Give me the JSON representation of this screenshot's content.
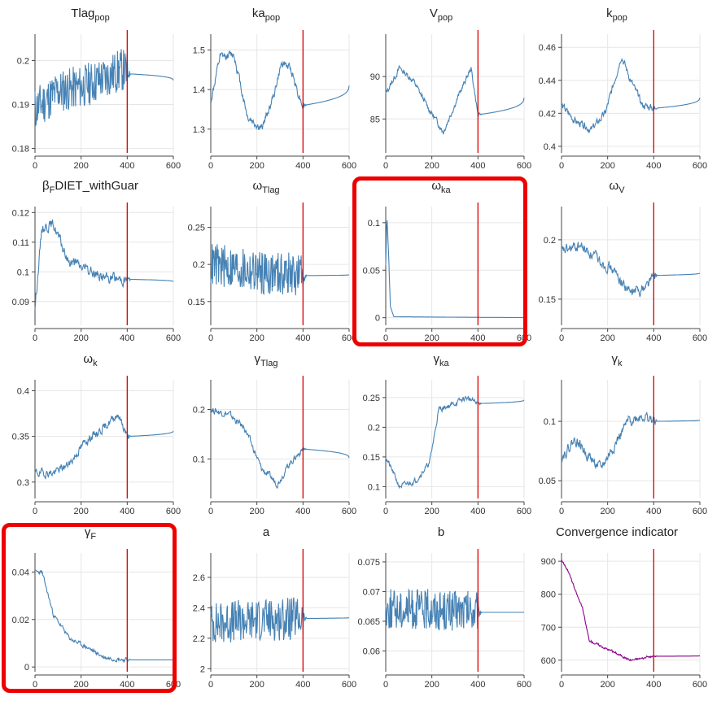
{
  "colors": {
    "series": "#4682b4",
    "convergence": "#8b008b",
    "burnin": "#dd0000",
    "grid": "#e6e6e6",
    "highlight": "#ee0000"
  },
  "highlighted": [
    "omega_ka",
    "gamma_F"
  ],
  "chart_data": [
    {
      "id": "Tlag_pop",
      "type": "line",
      "title_main": "Tlag",
      "title_sub": "pop",
      "xlim": [
        0,
        600
      ],
      "ylim": [
        0.179,
        0.206
      ],
      "yticks": [
        0.18,
        0.19,
        0.2
      ],
      "ytick_labels": [
        "0.18",
        "0.19",
        "0.2"
      ],
      "xticks": [
        0,
        200,
        400,
        600
      ],
      "xtick_labels": [
        "0",
        "200",
        "400",
        "600"
      ],
      "burnin": 400,
      "series": {
        "kind": "noisy",
        "start": 0.189,
        "final": 0.1955,
        "anchors": [
          [
            0,
            0.189
          ],
          [
            100,
            0.193
          ],
          [
            200,
            0.194
          ],
          [
            300,
            0.196
          ],
          [
            380,
            0.198
          ],
          [
            400,
            0.197
          ]
        ],
        "noise": 0.005,
        "seed": 11
      }
    },
    {
      "id": "ka_pop",
      "type": "line",
      "title_main": "ka",
      "title_sub": "pop",
      "xlim": [
        0,
        600
      ],
      "ylim": [
        1.24,
        1.54
      ],
      "yticks": [
        1.3,
        1.4,
        1.5
      ],
      "ytick_labels": [
        "1.3",
        "1.4",
        "1.5"
      ],
      "xticks": [
        0,
        200,
        400,
        600
      ],
      "xtick_labels": [
        "0",
        "200",
        "400",
        "600"
      ],
      "burnin": 400,
      "series": {
        "kind": "smooth",
        "start": 1.37,
        "final": 1.41,
        "anchors": [
          [
            0,
            1.37
          ],
          [
            40,
            1.48
          ],
          [
            100,
            1.49
          ],
          [
            160,
            1.33
          ],
          [
            220,
            1.3
          ],
          [
            270,
            1.38
          ],
          [
            310,
            1.47
          ],
          [
            350,
            1.45
          ],
          [
            380,
            1.39
          ],
          [
            400,
            1.36
          ]
        ],
        "noise": 0.025,
        "seed": 12
      }
    },
    {
      "id": "V_pop",
      "type": "line",
      "title_main": "V",
      "title_sub": "pop",
      "xlim": [
        0,
        600
      ],
      "ylim": [
        81,
        95
      ],
      "yticks": [
        85,
        90
      ],
      "ytick_labels": [
        "85",
        "90"
      ],
      "xticks": [
        0,
        200,
        400,
        600
      ],
      "xtick_labels": [
        "0",
        "200",
        "400",
        "600"
      ],
      "burnin": 400,
      "series": {
        "kind": "smooth",
        "start": 88,
        "final": 87.5,
        "anchors": [
          [
            0,
            88
          ],
          [
            60,
            91
          ],
          [
            120,
            89.5
          ],
          [
            180,
            86.5
          ],
          [
            250,
            83.5
          ],
          [
            320,
            88
          ],
          [
            370,
            91
          ],
          [
            400,
            85.5
          ]
        ],
        "noise": 0.8,
        "seed": 13
      }
    },
    {
      "id": "k_pop",
      "type": "line",
      "title_main": "k",
      "title_sub": "pop",
      "xlim": [
        0,
        600
      ],
      "ylim": [
        0.396,
        0.468
      ],
      "yticks": [
        0.4,
        0.42,
        0.44,
        0.46
      ],
      "ytick_labels": [
        "0.4",
        "0.42",
        "0.44",
        "0.46"
      ],
      "xticks": [
        0,
        200,
        400,
        600
      ],
      "xtick_labels": [
        "0",
        "200",
        "400",
        "600"
      ],
      "burnin": 400,
      "series": {
        "kind": "smooth",
        "start": 0.425,
        "final": 0.4295,
        "anchors": [
          [
            0,
            0.425
          ],
          [
            60,
            0.415
          ],
          [
            130,
            0.41
          ],
          [
            190,
            0.42
          ],
          [
            260,
            0.455
          ],
          [
            300,
            0.44
          ],
          [
            350,
            0.425
          ],
          [
            400,
            0.423
          ]
        ],
        "noise": 0.005,
        "seed": 14
      }
    },
    {
      "id": "beta_F_DIET_withGuar",
      "type": "line",
      "title_main": "β",
      "title_sub": "F",
      "title_tail": "DIET_withGuar",
      "xlim": [
        0,
        600
      ],
      "ylim": [
        0.082,
        0.122
      ],
      "yticks": [
        0.09,
        0.1,
        0.11,
        0.12
      ],
      "ytick_labels": [
        "0.09",
        "0.1",
        "0.11",
        "0.12"
      ],
      "xticks": [
        0,
        200,
        400,
        600
      ],
      "xtick_labels": [
        "0",
        "200",
        "400",
        "600"
      ],
      "burnin": 400,
      "series": {
        "kind": "smooth",
        "start": 0.088,
        "final": 0.0967,
        "anchors": [
          [
            0,
            0.088
          ],
          [
            30,
            0.115
          ],
          [
            80,
            0.116
          ],
          [
            140,
            0.104
          ],
          [
            220,
            0.101
          ],
          [
            300,
            0.098
          ],
          [
            400,
            0.0975
          ]
        ],
        "noise": 0.004,
        "seed": 15
      }
    },
    {
      "id": "omega_Tlag",
      "type": "line",
      "title_main": "ω",
      "title_sub": "Tlag",
      "xlim": [
        0,
        600
      ],
      "ylim": [
        0.118,
        0.278
      ],
      "yticks": [
        0.15,
        0.2,
        0.25
      ],
      "ytick_labels": [
        "0.15",
        "0.2",
        "0.25"
      ],
      "xticks": [
        0,
        200,
        400,
        600
      ],
      "xtick_labels": [
        "0",
        "200",
        "400",
        "600"
      ],
      "burnin": 400,
      "series": {
        "kind": "noisy",
        "start": 0.2,
        "final": 0.186,
        "anchors": [
          [
            0,
            0.2
          ],
          [
            200,
            0.19
          ],
          [
            400,
            0.185
          ]
        ],
        "noise": 0.03,
        "seed": 16
      }
    },
    {
      "id": "omega_ka",
      "type": "line",
      "title_main": "ω",
      "title_sub": "ka",
      "xlim": [
        0,
        600
      ],
      "ylim": [
        -0.008,
        0.117
      ],
      "yticks": [
        0,
        0.05,
        0.1
      ],
      "ytick_labels": [
        "0",
        "0.05",
        "0.1"
      ],
      "xticks": [
        0,
        200,
        400,
        600
      ],
      "xtick_labels": [
        "0",
        "200",
        "400",
        "600"
      ],
      "burnin": 400,
      "series": {
        "kind": "decay",
        "start": 0.108,
        "final": 0.0,
        "anchors": [
          [
            0,
            0.055
          ],
          [
            5,
            0.108
          ],
          [
            12,
            0.07
          ],
          [
            20,
            0.012
          ],
          [
            35,
            0.001
          ],
          [
            600,
            0.0
          ]
        ],
        "noise": 0,
        "seed": 17
      }
    },
    {
      "id": "omega_V",
      "type": "line",
      "title_main": "ω",
      "title_sub": "V",
      "xlim": [
        0,
        600
      ],
      "ylim": [
        0.128,
        0.228
      ],
      "yticks": [
        0.15,
        0.2
      ],
      "ytick_labels": [
        "0.15",
        "0.2"
      ],
      "xticks": [
        0,
        200,
        400,
        600
      ],
      "xtick_labels": [
        "0",
        "200",
        "400",
        "600"
      ],
      "burnin": 400,
      "series": {
        "kind": "smooth",
        "start": 0.19,
        "final": 0.172,
        "anchors": [
          [
            0,
            0.19
          ],
          [
            80,
            0.195
          ],
          [
            150,
            0.185
          ],
          [
            220,
            0.175
          ],
          [
            300,
            0.155
          ],
          [
            360,
            0.16
          ],
          [
            400,
            0.17
          ]
        ],
        "noise": 0.01,
        "seed": 18
      }
    },
    {
      "id": "omega_k",
      "type": "line",
      "title_main": "ω",
      "title_sub": "k",
      "xlim": [
        0,
        600
      ],
      "ylim": [
        0.282,
        0.412
      ],
      "yticks": [
        0.3,
        0.35,
        0.4
      ],
      "ytick_labels": [
        "0.3",
        "0.35",
        "0.4"
      ],
      "xticks": [
        0,
        200,
        400,
        600
      ],
      "xtick_labels": [
        "0",
        "200",
        "400",
        "600"
      ],
      "burnin": 400,
      "series": {
        "kind": "smooth",
        "start": 0.31,
        "final": 0.356,
        "anchors": [
          [
            0,
            0.31
          ],
          [
            80,
            0.31
          ],
          [
            150,
            0.32
          ],
          [
            220,
            0.345
          ],
          [
            300,
            0.36
          ],
          [
            360,
            0.375
          ],
          [
            400,
            0.35
          ]
        ],
        "noise": 0.01,
        "seed": 19
      }
    },
    {
      "id": "gamma_Tlag",
      "type": "line",
      "title_main": "γ",
      "title_sub": "Tlag",
      "xlim": [
        0,
        600
      ],
      "ylim": [
        0.02,
        0.26
      ],
      "yticks": [
        0.1,
        0.2
      ],
      "ytick_labels": [
        "0.1",
        "0.2"
      ],
      "xticks": [
        0,
        200,
        400,
        600
      ],
      "xtick_labels": [
        "0",
        "200",
        "400",
        "600"
      ],
      "burnin": 400,
      "series": {
        "kind": "smooth",
        "start": 0.2,
        "final": 0.102,
        "anchors": [
          [
            0,
            0.2
          ],
          [
            80,
            0.19
          ],
          [
            150,
            0.16
          ],
          [
            220,
            0.08
          ],
          [
            290,
            0.05
          ],
          [
            340,
            0.09
          ],
          [
            400,
            0.12
          ]
        ],
        "noise": 0.015,
        "seed": 20
      }
    },
    {
      "id": "gamma_ka",
      "type": "line",
      "title_main": "γ",
      "title_sub": "ka",
      "xlim": [
        0,
        600
      ],
      "ylim": [
        0.08,
        0.28
      ],
      "yticks": [
        0.1,
        0.15,
        0.2,
        0.25
      ],
      "ytick_labels": [
        "0.1",
        "0.15",
        "0.2",
        "0.25"
      ],
      "xticks": [
        0,
        200,
        400,
        600
      ],
      "xtick_labels": [
        "0",
        "200",
        "400",
        "600"
      ],
      "burnin": 400,
      "series": {
        "kind": "smooth",
        "start": 0.15,
        "final": 0.246,
        "anchors": [
          [
            0,
            0.15
          ],
          [
            60,
            0.1
          ],
          [
            130,
            0.11
          ],
          [
            190,
            0.14
          ],
          [
            230,
            0.23
          ],
          [
            300,
            0.24
          ],
          [
            350,
            0.25
          ],
          [
            400,
            0.24
          ]
        ],
        "noise": 0.01,
        "seed": 21
      }
    },
    {
      "id": "gamma_k",
      "type": "line",
      "title_main": "γ",
      "title_sub": "k",
      "xlim": [
        0,
        600
      ],
      "ylim": [
        0.035,
        0.135
      ],
      "yticks": [
        0.05,
        0.1
      ],
      "ytick_labels": [
        "0.05",
        "0.1"
      ],
      "xticks": [
        0,
        200,
        400,
        600
      ],
      "xtick_labels": [
        "0",
        "200",
        "400",
        "600"
      ],
      "burnin": 400,
      "series": {
        "kind": "smooth",
        "start": 0.07,
        "final": 0.101,
        "anchors": [
          [
            0,
            0.07
          ],
          [
            60,
            0.085
          ],
          [
            120,
            0.07
          ],
          [
            170,
            0.06
          ],
          [
            230,
            0.08
          ],
          [
            290,
            0.1
          ],
          [
            350,
            0.105
          ],
          [
            400,
            0.1
          ]
        ],
        "noise": 0.01,
        "seed": 22
      }
    },
    {
      "id": "gamma_F",
      "type": "line",
      "title_main": "γ",
      "title_sub": "F",
      "xlim": [
        0,
        600
      ],
      "ylim": [
        -0.002,
        0.048
      ],
      "yticks": [
        0,
        0.02,
        0.04
      ],
      "ytick_labels": [
        "0",
        "0.02",
        "0.04"
      ],
      "xticks": [
        0,
        200,
        400,
        600
      ],
      "xtick_labels": [
        "0",
        "200",
        "400",
        "600"
      ],
      "burnin": 400,
      "series": {
        "kind": "smooth",
        "start": 0.04,
        "final": 0.003,
        "anchors": [
          [
            0,
            0.04
          ],
          [
            30,
            0.04
          ],
          [
            80,
            0.022
          ],
          [
            150,
            0.012
          ],
          [
            230,
            0.008
          ],
          [
            300,
            0.004
          ],
          [
            400,
            0.003
          ]
        ],
        "noise": 0.002,
        "seed": 23
      }
    },
    {
      "id": "a",
      "type": "line",
      "title_main": "a",
      "title_sub": "",
      "xlim": [
        0,
        600
      ],
      "ylim": [
        1.98,
        2.76
      ],
      "yticks": [
        2,
        2.2,
        2.4,
        2.6
      ],
      "ytick_labels": [
        "2",
        "2.2",
        "2.4",
        "2.6"
      ],
      "xticks": [
        0,
        200,
        400,
        600
      ],
      "xtick_labels": [
        "0",
        "200",
        "400",
        "600"
      ],
      "burnin": 400,
      "series": {
        "kind": "noisy",
        "start": 2.3,
        "final": 2.335,
        "anchors": [
          [
            0,
            2.3
          ],
          [
            200,
            2.32
          ],
          [
            400,
            2.33
          ]
        ],
        "noise": 0.14,
        "seed": 24
      }
    },
    {
      "id": "b",
      "type": "line",
      "title_main": "b",
      "title_sub": "",
      "xlim": [
        0,
        600
      ],
      "ylim": [
        0.0565,
        0.0765
      ],
      "yticks": [
        0.06,
        0.065,
        0.07,
        0.075
      ],
      "ytick_labels": [
        "0.06",
        "0.065",
        "0.07",
        "0.075"
      ],
      "xticks": [
        0,
        200,
        400,
        600
      ],
      "xtick_labels": [
        "0",
        "200",
        "400",
        "600"
      ],
      "burnin": 400,
      "series": {
        "kind": "noisy",
        "start": 0.067,
        "final": 0.0665,
        "anchors": [
          [
            0,
            0.067
          ],
          [
            200,
            0.067
          ],
          [
            400,
            0.0665
          ]
        ],
        "noise": 0.0035,
        "seed": 25
      }
    },
    {
      "id": "convergence",
      "type": "line",
      "title_main": "Convergence indicator",
      "title_sub": "",
      "xlim": [
        0,
        600
      ],
      "ylim": [
        565,
        925
      ],
      "yticks": [
        600,
        700,
        800,
        900
      ],
      "ytick_labels": [
        "600",
        "700",
        "800",
        "900"
      ],
      "xticks": [
        0,
        200,
        400,
        600
      ],
      "xtick_labels": [
        "0",
        "200",
        "400",
        "600"
      ],
      "burnin": 400,
      "series": {
        "kind": "smooth",
        "start": 905,
        "final": 613,
        "anchors": [
          [
            0,
            905
          ],
          [
            30,
            870
          ],
          [
            60,
            810
          ],
          [
            90,
            760
          ],
          [
            120,
            660
          ],
          [
            180,
            640
          ],
          [
            240,
            620
          ],
          [
            300,
            600
          ],
          [
            400,
            612
          ],
          [
            600,
            612
          ]
        ],
        "noise": 8,
        "seed": 26
      },
      "color": "convergence"
    }
  ]
}
